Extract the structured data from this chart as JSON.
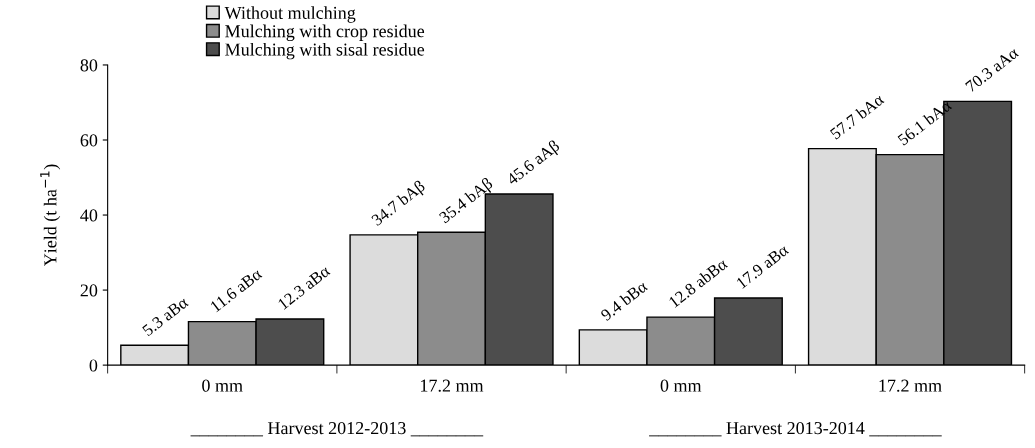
{
  "chart_data": {
    "type": "bar",
    "ylabel": "Yield (t ha$^{−1}$)",
    "categories": [
      "0 mm",
      "17.2 mm",
      "0 mm",
      "17.2 mm"
    ],
    "series": [
      {
        "name": "Without mulching",
        "color": "#dcdcdc",
        "values": [
          5.3,
          34.7,
          9.4,
          57.7
        ],
        "value_labels": [
          "5.3 aBα",
          "34.7 bAβ",
          "9.4 bBα",
          "57.7 bAα"
        ]
      },
      {
        "name": "Mulching with crop residue",
        "color": "#8c8c8c",
        "values": [
          11.6,
          35.4,
          12.8,
          56.1
        ],
        "value_labels": [
          "11.6 aBα",
          "35.4 bAβ",
          "12.8 abBα",
          "56.1 bAα"
        ]
      },
      {
        "name": "Mulching with sisal residue",
        "color": "#4d4d4d",
        "values": [
          12.3,
          45.6,
          17.9,
          70.3
        ],
        "value_labels": [
          "12.3 aBα",
          "45.6 aAβ",
          "17.9 aBα",
          "70.3 aAα"
        ]
      }
    ],
    "ylim": [
      0,
      80
    ],
    "yticks": [
      0,
      20,
      40,
      60,
      80
    ],
    "grid": false,
    "legend": "top left",
    "annotations": [
      "________ Harvest 2012-2013 ________",
      "________ Harvest 2013-2014 ________"
    ]
  }
}
